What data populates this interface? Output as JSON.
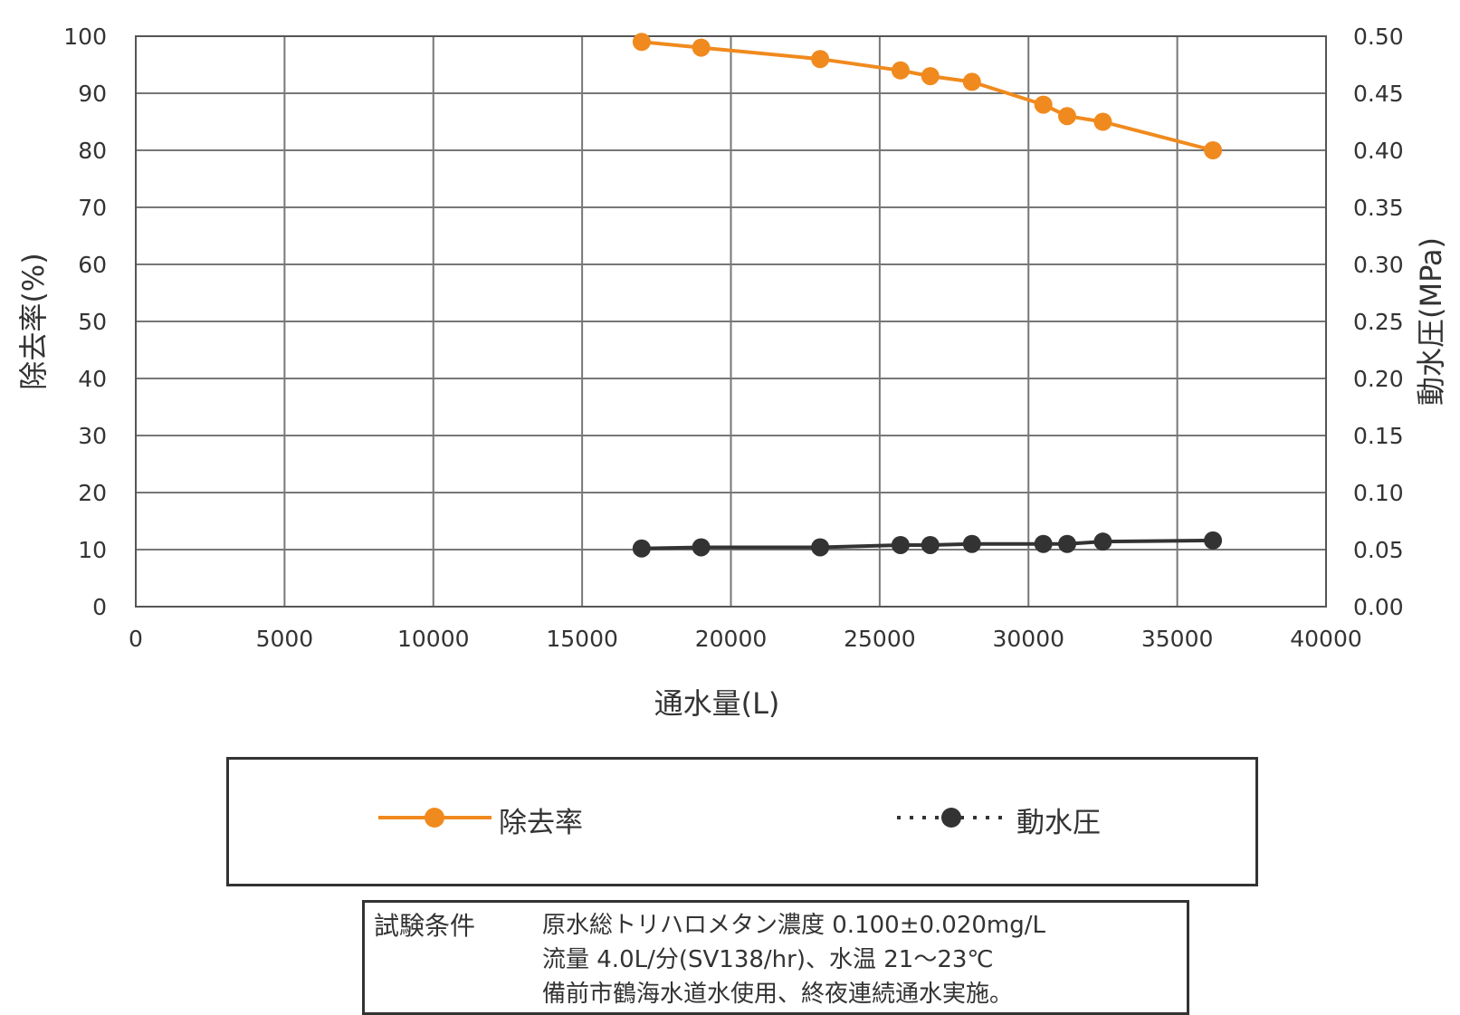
{
  "chart_data": {
    "type": "line",
    "title": "",
    "xlabel": "通水量(L)",
    "ylabel": "除去率(%)",
    "y2label": "動水圧(MPa)",
    "xlim": [
      0,
      40000
    ],
    "ylim": [
      0,
      100
    ],
    "y2lim": [
      0,
      0.5
    ],
    "x_ticks": [
      "0",
      "5000",
      "10000",
      "15000",
      "20000",
      "25000",
      "30000",
      "35000",
      "40000"
    ],
    "y_ticks": [
      "0",
      "10",
      "20",
      "30",
      "40",
      "50",
      "60",
      "70",
      "80",
      "90",
      "100"
    ],
    "y2_ticks": [
      "0.00",
      "0.05",
      "0.10",
      "0.15",
      "0.20",
      "0.25",
      "0.30",
      "0.35",
      "0.40",
      "0.45",
      "0.50"
    ],
    "grid": true,
    "legend_position": "bottom",
    "series": [
      {
        "name": "除去率",
        "axis": "left",
        "color": "#F08A1E",
        "line_style": "solid",
        "x": [
          17000,
          19000,
          23000,
          25700,
          26700,
          28100,
          30500,
          31300,
          32500,
          36200
        ],
        "values": [
          99,
          98,
          96,
          94,
          93,
          92,
          88,
          86,
          85,
          80
        ]
      },
      {
        "name": "動水圧",
        "axis": "right",
        "color": "#333333",
        "line_style": "dotted",
        "x": [
          17000,
          19000,
          23000,
          25700,
          26700,
          28100,
          30500,
          31300,
          32500,
          36200
        ],
        "values": [
          0.051,
          0.052,
          0.052,
          0.054,
          0.054,
          0.055,
          0.055,
          0.055,
          0.057,
          0.058
        ]
      }
    ]
  },
  "conditions": {
    "label": "試験条件",
    "lines": [
      "原水総トリハロメタン濃度 0.100±0.020mg/L",
      "流量 4.0L/分(SV138/hr)、水温 21～23℃",
      "備前市鶴海水道水使用、終夜連続通水実施。"
    ]
  }
}
